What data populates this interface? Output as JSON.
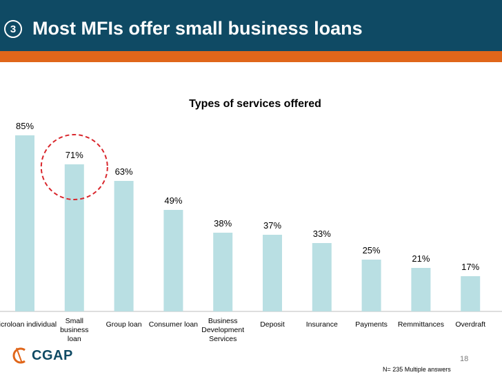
{
  "header": {
    "slide_number": "3",
    "title": "Most MFIs offer small business loans"
  },
  "chart_data": {
    "type": "bar",
    "title": "Types of services offered",
    "categories": [
      "Microloan individual",
      "Small business loan",
      "Group loan",
      "Consumer loan",
      "Business Development Services",
      "Deposit",
      "Insurance",
      "Payments",
      "Remmittances",
      "Overdraft"
    ],
    "values": [
      85,
      71,
      63,
      49,
      38,
      37,
      33,
      25,
      21,
      17
    ],
    "value_labels": [
      "85%",
      "71%",
      "63%",
      "49%",
      "38%",
      "37%",
      "33%",
      "25%",
      "21%",
      "17%"
    ],
    "ylim": [
      0,
      100
    ],
    "grid": false,
    "bar_color": "#b9dfe3",
    "highlight_index": 1,
    "highlight_color": "#d9262c"
  },
  "footer": {
    "logo_text": "CGAP",
    "page_number": "18",
    "note": "N= 235 Multiple answers"
  }
}
